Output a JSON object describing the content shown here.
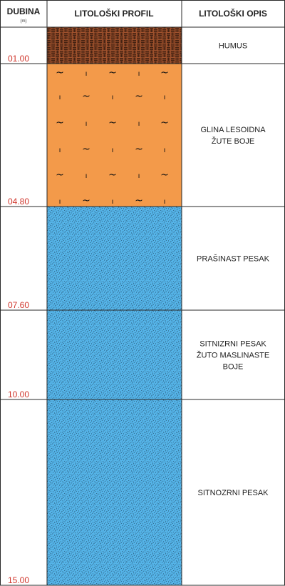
{
  "header": {
    "depth_title": "DUBINA",
    "depth_unit": "(m)",
    "profile_title": "LITOLOŠKI PROFIL",
    "description_title": "LITOLOŠKI OPIS"
  },
  "layers": [
    {
      "bottom": "01.00",
      "description": [
        "HUMUS"
      ],
      "pattern": "humus",
      "color": "#a0522d"
    },
    {
      "bottom": "04.80",
      "description": [
        "GLINA LESOIDNA",
        "ŽUTE BOJE"
      ],
      "pattern": "clay",
      "color": "#f39a4a"
    },
    {
      "bottom": "07.60",
      "description": [
        "PRAŠINAST PESAK"
      ],
      "pattern": "sand",
      "color": "#55b4e8"
    },
    {
      "bottom": "10.00",
      "description": [
        "SITNIZRNI PESAK",
        "ŽUTO MASLINASTE",
        "BOJE"
      ],
      "pattern": "sand",
      "color": "#55b4e8"
    },
    {
      "bottom": "15.00",
      "description": [
        "SITNOZRNI PESAK"
      ],
      "pattern": "sand",
      "color": "#55b4e8"
    }
  ],
  "symbols": {
    "clay_wave": "~",
    "clay_tick": "ı"
  }
}
